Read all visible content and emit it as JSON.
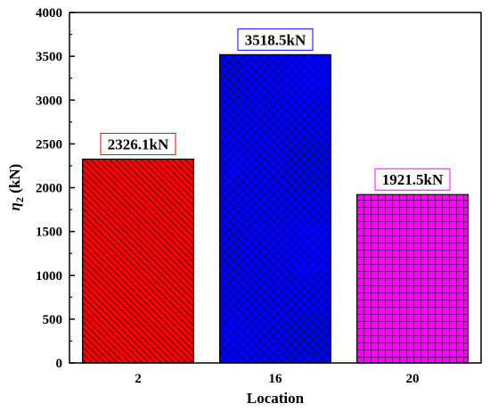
{
  "chart_data": {
    "type": "bar",
    "categories": [
      "2",
      "16",
      "20"
    ],
    "values": [
      2326.1,
      3518.5,
      1921.5
    ],
    "data_labels": [
      "2326.1kN",
      "3518.5kN",
      "1921.5kN"
    ],
    "xlabel": "Location",
    "ylabel_symbol": "η",
    "ylabel_subscript": "2",
    "ylabel_unit": " (kN)",
    "ylim": [
      0,
      4000
    ],
    "yticks": [
      "0",
      "500",
      "1000",
      "1500",
      "2000",
      "2500",
      "3000",
      "3500",
      "4000"
    ],
    "grid": false,
    "bar_colors": [
      "#ff0000",
      "#0000ff",
      "#ff00ff"
    ],
    "hatch_colors": [
      "#000000",
      "#000000",
      "#000000"
    ],
    "label_box_colors": [
      "#ff0000",
      "#0000ff",
      "#ff00ff"
    ],
    "patterns": [
      "diagonal",
      "crosshatch-diagonal",
      "grid"
    ]
  }
}
